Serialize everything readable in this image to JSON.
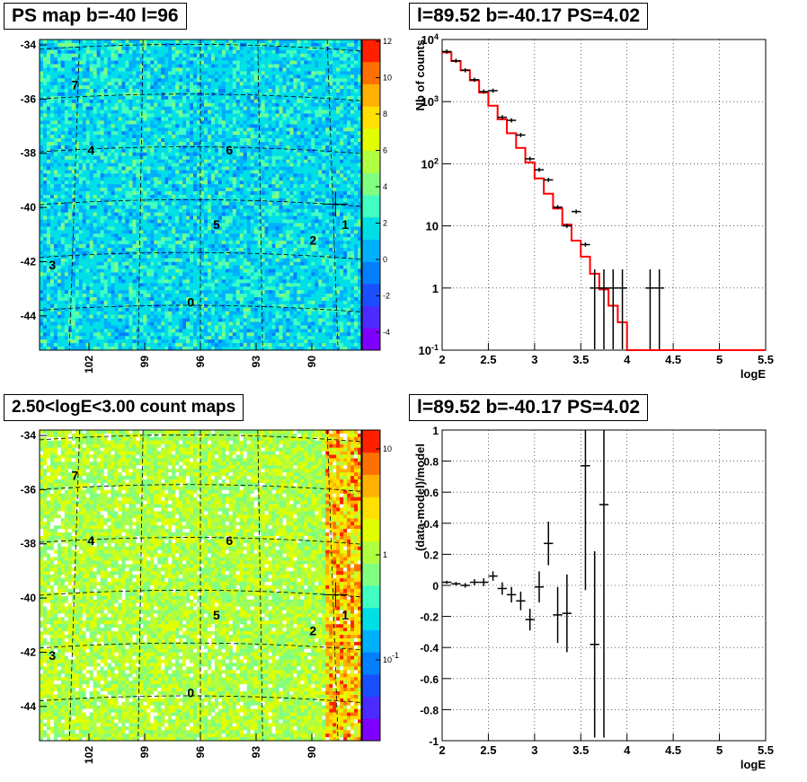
{
  "panels": {
    "ps_map_title": "PS map b=-40 l=96",
    "spectrum_title": "l=89.52 b=-40.17 PS=4.02",
    "count_map_title": "2.50<logE<3.00 count maps",
    "residual_title": "l=89.52 b=-40.17 PS=4.02"
  },
  "colors": {
    "model": "#ff0000",
    "data": "#000000",
    "palette": [
      "#8000ff",
      "#4b2bff",
      "#1a4fff",
      "#0080ff",
      "#00b0ff",
      "#00dfe6",
      "#40ffc0",
      "#80ff80",
      "#b0ff40",
      "#e0ff00",
      "#ffe000",
      "#ffb000",
      "#ff7000",
      "#ff2000"
    ]
  },
  "chart_data": [
    {
      "type": "heatmap",
      "title": "PS map b=-40 l=96",
      "y_ticks": [
        "-34",
        "-36",
        "-38",
        "-40",
        "-42",
        "-44"
      ],
      "x_ticks": [
        "102",
        "99",
        "96",
        "93",
        "90"
      ],
      "colorbar_ticks": [
        "12",
        "10",
        "8",
        "6",
        "4",
        "2",
        "0",
        "-2",
        "-4"
      ],
      "colorbar_range": [
        -5,
        12
      ],
      "sources": [
        {
          "label": "0",
          "lon": 96.6,
          "lat": -44.1
        },
        {
          "label": "1",
          "lon": 88.4,
          "lat": -40.5
        },
        {
          "label": "2",
          "lon": 89.9,
          "lat": -41.8
        },
        {
          "label": "3",
          "lon": 105.2,
          "lat": -42.8
        },
        {
          "label": "4",
          "lon": 103.0,
          "lat": -38.3
        },
        {
          "label": "5",
          "lon": 94.9,
          "lat": -40.9
        },
        {
          "label": "6",
          "lon": 94.2,
          "lat": -38.3
        },
        {
          "label": "7",
          "lon": 103.7,
          "lat": -35.8
        }
      ],
      "marker": {
        "lon": 89.52,
        "lat": -40.17
      }
    },
    {
      "type": "line",
      "title": "l=89.52 b=-40.17 PS=4.02",
      "xlabel": "logE",
      "ylabel": "Nb of counts",
      "xlim": [
        2,
        5.5
      ],
      "ylim": [
        0.1,
        10000
      ],
      "y_scale": "log",
      "x_ticks": [
        "2",
        "2.5",
        "3",
        "3.5",
        "4",
        "4.5",
        "5",
        "5.5"
      ],
      "y_ticks": [
        "10<sup>-1</sup>",
        "1",
        "10",
        "10<sup>2</sup>",
        "10<sup>3</sup>",
        "10<sup>4</sup>"
      ],
      "model_bins": [
        2.0,
        2.1,
        2.2,
        2.3,
        2.4,
        2.5,
        2.6,
        2.7,
        2.8,
        2.9,
        3.0,
        3.1,
        3.2,
        3.3,
        3.4,
        3.5,
        3.6,
        3.7,
        3.8,
        3.9,
        4.0,
        4.1,
        4.2,
        4.3,
        4.4,
        4.5,
        4.6,
        4.7,
        4.8,
        4.9,
        5.0,
        5.1,
        5.2,
        5.3,
        5.4,
        5.5
      ],
      "model_values": [
        6200,
        4500,
        3200,
        2200,
        1400,
        860,
        520,
        310,
        180,
        105,
        58,
        33,
        19,
        10.5,
        5.8,
        3.2,
        1.7,
        0.95,
        0.52,
        0.28,
        0.1,
        0.1,
        0.1,
        0.1,
        0.1,
        0.1,
        0.1,
        0.1,
        0.1,
        0.1,
        0.1,
        0.1,
        0.1,
        0.1,
        0.1
      ],
      "data_points": [
        {
          "x": 2.05,
          "y": 6400
        },
        {
          "x": 2.15,
          "y": 4550
        },
        {
          "x": 2.25,
          "y": 3200
        },
        {
          "x": 2.35,
          "y": 2250
        },
        {
          "x": 2.45,
          "y": 1450
        },
        {
          "x": 2.55,
          "y": 1500
        },
        {
          "x": 2.65,
          "y": 560
        },
        {
          "x": 2.75,
          "y": 500
        },
        {
          "x": 2.85,
          "y": 290
        },
        {
          "x": 2.95,
          "y": 120
        },
        {
          "x": 3.05,
          "y": 80
        },
        {
          "x": 3.15,
          "y": 55
        },
        {
          "x": 3.25,
          "y": 20
        },
        {
          "x": 3.35,
          "y": 10
        },
        {
          "x": 3.45,
          "y": 17
        },
        {
          "x": 3.55,
          "y": 5
        },
        {
          "x": 3.65,
          "y": 1
        },
        {
          "x": 3.75,
          "y": 1
        },
        {
          "x": 3.85,
          "y": 1
        },
        {
          "x": 3.95,
          "y": 1
        },
        {
          "x": 4.25,
          "y": 1
        },
        {
          "x": 4.35,
          "y": 1
        }
      ]
    },
    {
      "type": "heatmap",
      "title": "2.50<logE<3.00 count maps",
      "y_ticks": [
        "-34",
        "-36",
        "-38",
        "-40",
        "-42",
        "-44"
      ],
      "x_ticks": [
        "102",
        "99",
        "96",
        "93",
        "90"
      ],
      "colorbar_ticks": [
        "10",
        "1",
        "10<sup>-1</sup>"
      ],
      "colorbar_scale": "log"
    },
    {
      "type": "scatter",
      "title": "l=89.52 b=-40.17 PS=4.02",
      "xlabel": "logE",
      "ylabel": "(data-model)/model",
      "xlim": [
        2,
        5.5
      ],
      "ylim": [
        -1,
        1
      ],
      "x_ticks": [
        "2",
        "2.5",
        "3",
        "3.5",
        "4",
        "4.5",
        "5",
        "5.5"
      ],
      "y_ticks": [
        "1",
        "0.8",
        "0.6",
        "0.4",
        "0.2",
        "0",
        "-0.2",
        "-0.4",
        "-0.6",
        "-0.8",
        "-1"
      ],
      "points": [
        {
          "x": 2.05,
          "y": 0.02,
          "err": 0.01
        },
        {
          "x": 2.15,
          "y": 0.01,
          "err": 0.012
        },
        {
          "x": 2.25,
          "y": 0.0,
          "err": 0.015
        },
        {
          "x": 2.35,
          "y": 0.02,
          "err": 0.02
        },
        {
          "x": 2.45,
          "y": 0.02,
          "err": 0.025
        },
        {
          "x": 2.55,
          "y": 0.06,
          "err": 0.03
        },
        {
          "x": 2.65,
          "y": -0.02,
          "err": 0.04
        },
        {
          "x": 2.75,
          "y": -0.06,
          "err": 0.05
        },
        {
          "x": 2.85,
          "y": -0.1,
          "err": 0.06
        },
        {
          "x": 2.95,
          "y": -0.22,
          "err": 0.07
        },
        {
          "x": 3.05,
          "y": -0.01,
          "err": 0.1
        },
        {
          "x": 3.15,
          "y": 0.27,
          "err": 0.14
        },
        {
          "x": 3.25,
          "y": -0.19,
          "err": 0.18
        },
        {
          "x": 3.35,
          "y": -0.18,
          "err": 0.25
        },
        {
          "x": 3.55,
          "y": 0.77,
          "err": 0.8
        },
        {
          "x": 3.65,
          "y": -0.38,
          "err": 0.6
        },
        {
          "x": 3.75,
          "y": 0.52,
          "err": 1.5
        }
      ]
    }
  ]
}
